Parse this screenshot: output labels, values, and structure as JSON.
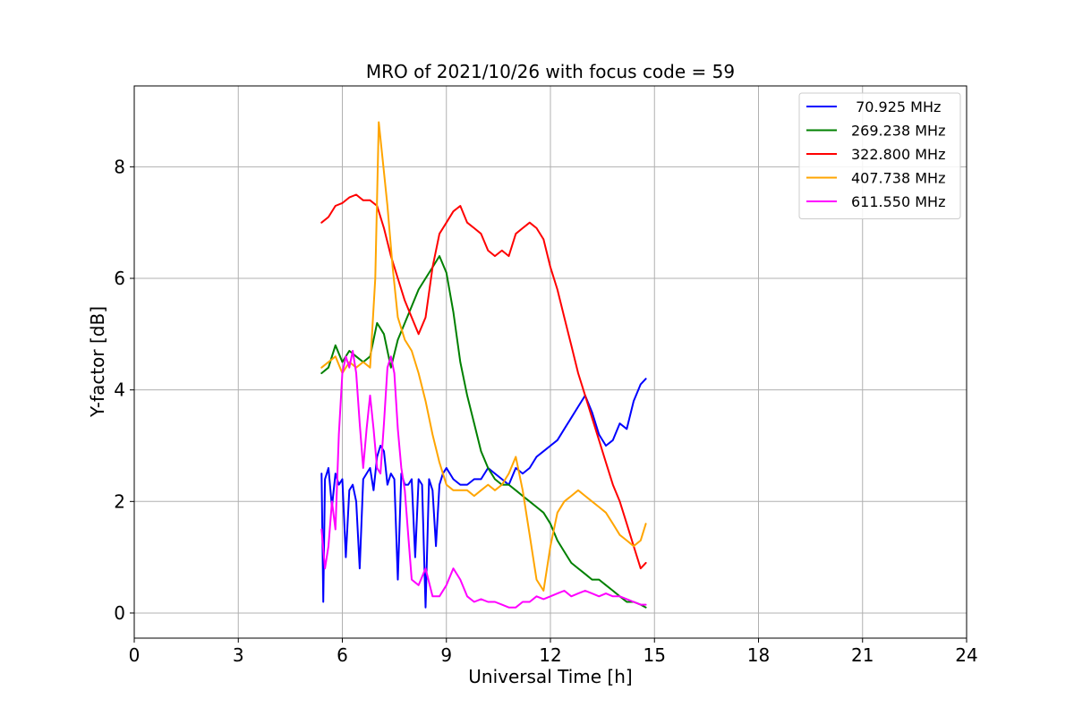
{
  "chart_data": {
    "type": "line",
    "title": "MRO of 2021/10/26 with focus code = 59",
    "xlabel": "Universal Time [h]",
    "ylabel": "Y-factor [dB]",
    "xlim": [
      0,
      24
    ],
    "ylim": [
      -0.45,
      9.45
    ],
    "xticks": [
      0,
      3,
      6,
      9,
      12,
      15,
      18,
      21,
      24
    ],
    "xtick_labels": [
      "0",
      "3",
      "6",
      "9",
      "12",
      "15",
      "18",
      "21",
      "24"
    ],
    "yticks": [
      0,
      2,
      4,
      6,
      8
    ],
    "ytick_labels": [
      "0",
      "2",
      "4",
      "6",
      "8"
    ],
    "grid": true,
    "legend_position": "top-right",
    "series": [
      {
        "name": " 70.925 MHz",
        "color": "#0000ff",
        "x": [
          5.4,
          5.45,
          5.5,
          5.6,
          5.7,
          5.8,
          5.9,
          6.0,
          6.1,
          6.2,
          6.3,
          6.4,
          6.5,
          6.6,
          6.7,
          6.8,
          6.9,
          7.0,
          7.1,
          7.2,
          7.3,
          7.4,
          7.5,
          7.6,
          7.7,
          7.8,
          7.9,
          8.0,
          8.1,
          8.2,
          8.3,
          8.4,
          8.5,
          8.6,
          8.7,
          8.8,
          8.9,
          9.0,
          9.2,
          9.4,
          9.6,
          9.8,
          10.0,
          10.2,
          10.4,
          10.6,
          10.8,
          11.0,
          11.2,
          11.4,
          11.6,
          11.8,
          12.0,
          12.2,
          12.4,
          12.6,
          12.8,
          13.0,
          13.2,
          13.4,
          13.6,
          13.8,
          14.0,
          14.2,
          14.4,
          14.6,
          14.75
        ],
        "y": [
          2.5,
          0.2,
          2.4,
          2.6,
          1.9,
          2.5,
          2.3,
          2.4,
          1.0,
          2.2,
          2.3,
          2.0,
          0.8,
          2.4,
          2.5,
          2.6,
          2.2,
          2.8,
          3.0,
          2.9,
          2.3,
          2.5,
          2.4,
          0.6,
          2.5,
          2.3,
          2.3,
          2.4,
          1.0,
          2.4,
          2.3,
          0.1,
          2.4,
          2.2,
          1.2,
          2.3,
          2.5,
          2.6,
          2.4,
          2.3,
          2.3,
          2.4,
          2.4,
          2.6,
          2.5,
          2.4,
          2.3,
          2.6,
          2.5,
          2.6,
          2.8,
          2.9,
          3.0,
          3.1,
          3.3,
          3.5,
          3.7,
          3.9,
          3.6,
          3.2,
          3.0,
          3.1,
          3.4,
          3.3,
          3.8,
          4.1,
          4.2
        ]
      },
      {
        "name": "269.238 MHz",
        "color": "#008000",
        "x": [
          5.4,
          5.6,
          5.8,
          6.0,
          6.2,
          6.4,
          6.6,
          6.8,
          7.0,
          7.2,
          7.4,
          7.6,
          7.8,
          8.0,
          8.2,
          8.4,
          8.6,
          8.8,
          9.0,
          9.2,
          9.4,
          9.6,
          9.8,
          10.0,
          10.2,
          10.4,
          10.6,
          10.8,
          11.0,
          11.2,
          11.4,
          11.6,
          11.8,
          12.0,
          12.2,
          12.4,
          12.6,
          12.8,
          13.0,
          13.2,
          13.4,
          13.6,
          13.8,
          14.0,
          14.2,
          14.4,
          14.6,
          14.75
        ],
        "y": [
          4.3,
          4.4,
          4.8,
          4.5,
          4.7,
          4.6,
          4.5,
          4.6,
          5.2,
          5.0,
          4.4,
          4.9,
          5.2,
          5.5,
          5.8,
          6.0,
          6.2,
          6.4,
          6.1,
          5.4,
          4.5,
          3.9,
          3.4,
          2.9,
          2.6,
          2.4,
          2.3,
          2.3,
          2.2,
          2.1,
          2.0,
          1.9,
          1.8,
          1.6,
          1.3,
          1.1,
          0.9,
          0.8,
          0.7,
          0.6,
          0.6,
          0.5,
          0.4,
          0.3,
          0.2,
          0.2,
          0.15,
          0.1
        ]
      },
      {
        "name": "322.800 MHz",
        "color": "#ff0000",
        "x": [
          5.4,
          5.6,
          5.8,
          6.0,
          6.2,
          6.4,
          6.6,
          6.8,
          7.0,
          7.2,
          7.4,
          7.6,
          7.8,
          8.0,
          8.2,
          8.4,
          8.6,
          8.8,
          9.0,
          9.2,
          9.4,
          9.6,
          9.8,
          10.0,
          10.2,
          10.4,
          10.6,
          10.8,
          11.0,
          11.2,
          11.4,
          11.6,
          11.8,
          12.0,
          12.2,
          12.4,
          12.6,
          12.8,
          13.0,
          13.2,
          13.4,
          13.6,
          13.8,
          14.0,
          14.2,
          14.4,
          14.6,
          14.75
        ],
        "y": [
          7.0,
          7.1,
          7.3,
          7.35,
          7.45,
          7.5,
          7.4,
          7.4,
          7.3,
          6.9,
          6.4,
          6.0,
          5.6,
          5.3,
          5.0,
          5.3,
          6.2,
          6.8,
          7.0,
          7.2,
          7.3,
          7.0,
          6.9,
          6.8,
          6.5,
          6.4,
          6.5,
          6.4,
          6.8,
          6.9,
          7.0,
          6.9,
          6.7,
          6.2,
          5.8,
          5.3,
          4.8,
          4.3,
          3.9,
          3.5,
          3.1,
          2.7,
          2.3,
          2.0,
          1.6,
          1.2,
          0.8,
          0.9
        ]
      },
      {
        "name": "407.738 MHz",
        "color": "#ffa500",
        "x": [
          5.4,
          5.6,
          5.8,
          6.0,
          6.2,
          6.4,
          6.6,
          6.8,
          6.95,
          7.05,
          7.15,
          7.3,
          7.45,
          7.6,
          7.8,
          8.0,
          8.2,
          8.4,
          8.6,
          8.8,
          9.0,
          9.2,
          9.4,
          9.6,
          9.8,
          10.0,
          10.2,
          10.4,
          10.6,
          10.8,
          11.0,
          11.2,
          11.4,
          11.6,
          11.8,
          12.0,
          12.2,
          12.4,
          12.6,
          12.8,
          13.0,
          13.2,
          13.4,
          13.6,
          13.8,
          14.0,
          14.2,
          14.4,
          14.6,
          14.75
        ],
        "y": [
          4.4,
          4.5,
          4.6,
          4.3,
          4.5,
          4.4,
          4.5,
          4.4,
          6.0,
          8.8,
          8.2,
          7.3,
          6.2,
          5.3,
          4.9,
          4.7,
          4.3,
          3.8,
          3.2,
          2.7,
          2.3,
          2.2,
          2.2,
          2.2,
          2.1,
          2.2,
          2.3,
          2.2,
          2.3,
          2.5,
          2.8,
          2.2,
          1.4,
          0.6,
          0.4,
          1.2,
          1.8,
          2.0,
          2.1,
          2.2,
          2.1,
          2.0,
          1.9,
          1.8,
          1.6,
          1.4,
          1.3,
          1.2,
          1.3,
          1.6
        ]
      },
      {
        "name": "611.550 MHz",
        "color": "#ff00ff",
        "x": [
          5.4,
          5.5,
          5.6,
          5.7,
          5.8,
          5.9,
          6.0,
          6.1,
          6.2,
          6.3,
          6.4,
          6.5,
          6.6,
          6.7,
          6.8,
          6.9,
          7.0,
          7.1,
          7.2,
          7.3,
          7.4,
          7.5,
          7.6,
          7.7,
          7.8,
          7.9,
          8.0,
          8.2,
          8.4,
          8.6,
          8.8,
          9.0,
          9.2,
          9.4,
          9.6,
          9.8,
          10.0,
          10.2,
          10.4,
          10.6,
          10.8,
          11.0,
          11.2,
          11.4,
          11.6,
          11.8,
          12.0,
          12.2,
          12.4,
          12.6,
          12.8,
          13.0,
          13.2,
          13.4,
          13.6,
          13.8,
          14.0,
          14.2,
          14.4,
          14.6,
          14.75
        ],
        "y": [
          1.5,
          0.8,
          1.2,
          2.0,
          1.5,
          3.2,
          4.3,
          4.6,
          4.4,
          4.7,
          4.3,
          3.4,
          2.6,
          3.3,
          3.9,
          3.3,
          2.6,
          2.5,
          3.4,
          4.4,
          4.6,
          4.3,
          3.3,
          2.6,
          2.2,
          1.4,
          0.6,
          0.5,
          0.8,
          0.3,
          0.3,
          0.5,
          0.8,
          0.6,
          0.3,
          0.2,
          0.25,
          0.2,
          0.2,
          0.15,
          0.1,
          0.1,
          0.2,
          0.2,
          0.3,
          0.25,
          0.3,
          0.35,
          0.4,
          0.3,
          0.35,
          0.4,
          0.35,
          0.3,
          0.35,
          0.3,
          0.3,
          0.25,
          0.2,
          0.15,
          0.15
        ]
      }
    ]
  }
}
